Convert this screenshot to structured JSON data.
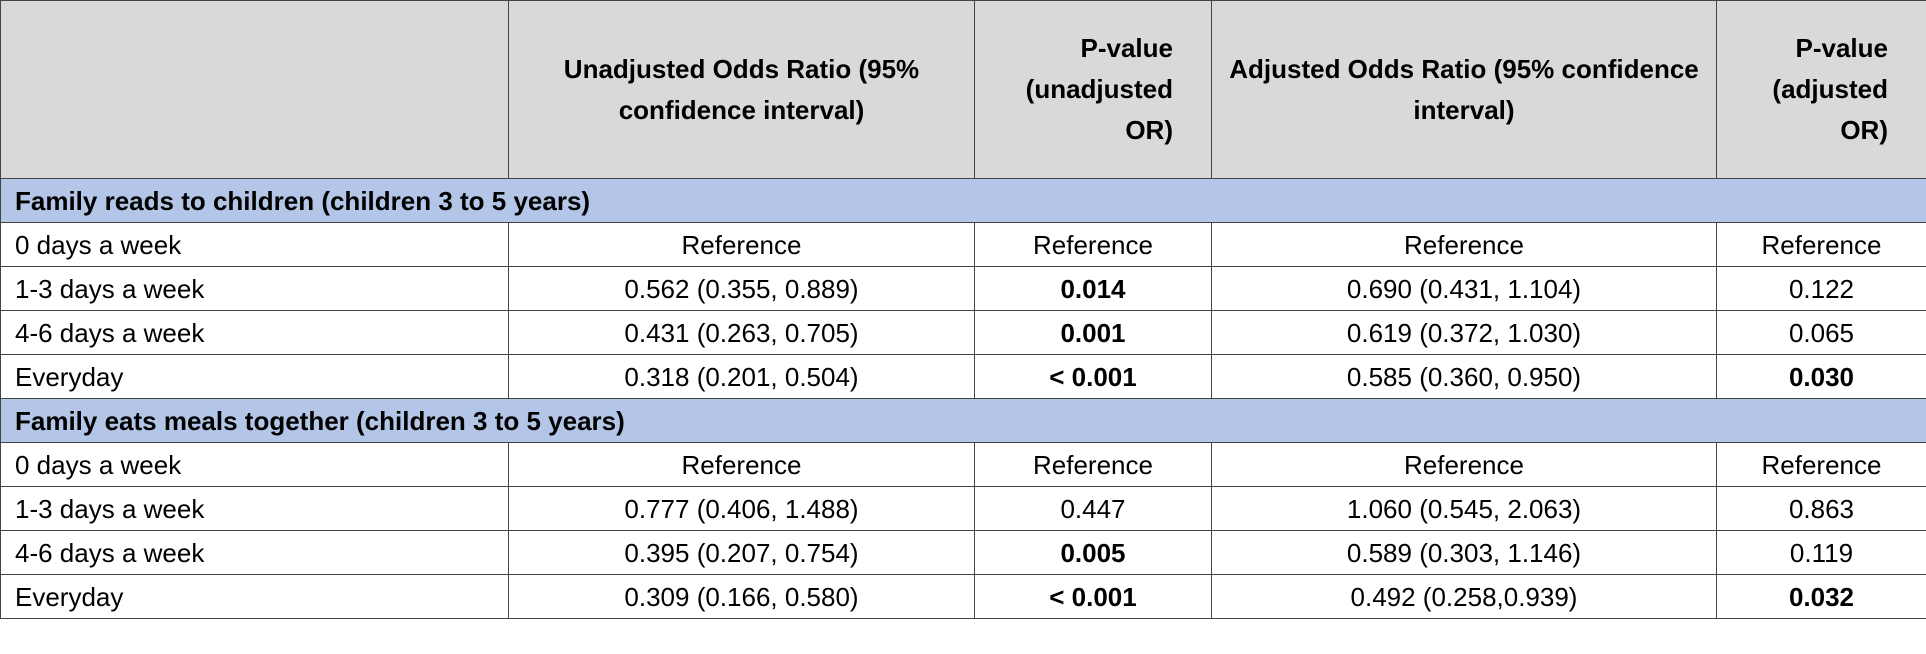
{
  "table": {
    "columns": [
      "",
      "Unadjusted Odds Ratio (95% confidence interval)",
      "P-value (unadjusted OR)",
      "Adjusted Odds Ratio (95% confidence interval)",
      "P-value (adjusted OR)"
    ],
    "sections": [
      {
        "title": "Family reads to children (children 3 to 5 years)",
        "rows": [
          {
            "label": "0 days a week",
            "unadj_or": "Reference",
            "p_unadj": "Reference",
            "p_unadj_bold": false,
            "adj_or": "Reference",
            "p_adj": "Reference",
            "p_adj_bold": false
          },
          {
            "label": "1-3 days a week",
            "unadj_or": "0.562 (0.355, 0.889)",
            "p_unadj": "0.014",
            "p_unadj_bold": true,
            "adj_or": "0.690 (0.431, 1.104)",
            "p_adj": "0.122",
            "p_adj_bold": false
          },
          {
            "label": "4-6 days a week",
            "unadj_or": "0.431 (0.263, 0.705)",
            "p_unadj": "0.001",
            "p_unadj_bold": true,
            "adj_or": "0.619 (0.372, 1.030)",
            "p_adj": "0.065",
            "p_adj_bold": false
          },
          {
            "label": "Everyday",
            "unadj_or": "0.318 (0.201, 0.504)",
            "p_unadj": "< 0.001",
            "p_unadj_bold": true,
            "adj_or": "0.585 (0.360, 0.950)",
            "p_adj": "0.030",
            "p_adj_bold": true
          }
        ]
      },
      {
        "title": "Family eats meals together (children 3 to 5 years)",
        "rows": [
          {
            "label": "0 days a week",
            "unadj_or": "Reference",
            "p_unadj": "Reference",
            "p_unadj_bold": false,
            "adj_or": "Reference",
            "p_adj": "Reference",
            "p_adj_bold": false
          },
          {
            "label": "1-3 days a week",
            "unadj_or": "0.777 (0.406, 1.488)",
            "p_unadj": "0.447",
            "p_unadj_bold": false,
            "adj_or": "1.060 (0.545, 2.063)",
            "p_adj": "0.863",
            "p_adj_bold": false
          },
          {
            "label": "4-6 days a week",
            "unadj_or": "0.395 (0.207, 0.754)",
            "p_unadj": "0.005",
            "p_unadj_bold": true,
            "adj_or": "0.589 (0.303, 1.146)",
            "p_adj": "0.119",
            "p_adj_bold": false
          },
          {
            "label": "Everyday",
            "unadj_or": "0.309 (0.166, 0.580)",
            "p_unadj": "< 0.001",
            "p_unadj_bold": true,
            "adj_or": "0.492 (0.258,0.939)",
            "p_adj": "0.032",
            "p_adj_bold": true
          }
        ]
      }
    ],
    "colors": {
      "header_bg": "#d9d9d9",
      "section_bg": "#b4c6e7",
      "border": "#444444"
    }
  }
}
